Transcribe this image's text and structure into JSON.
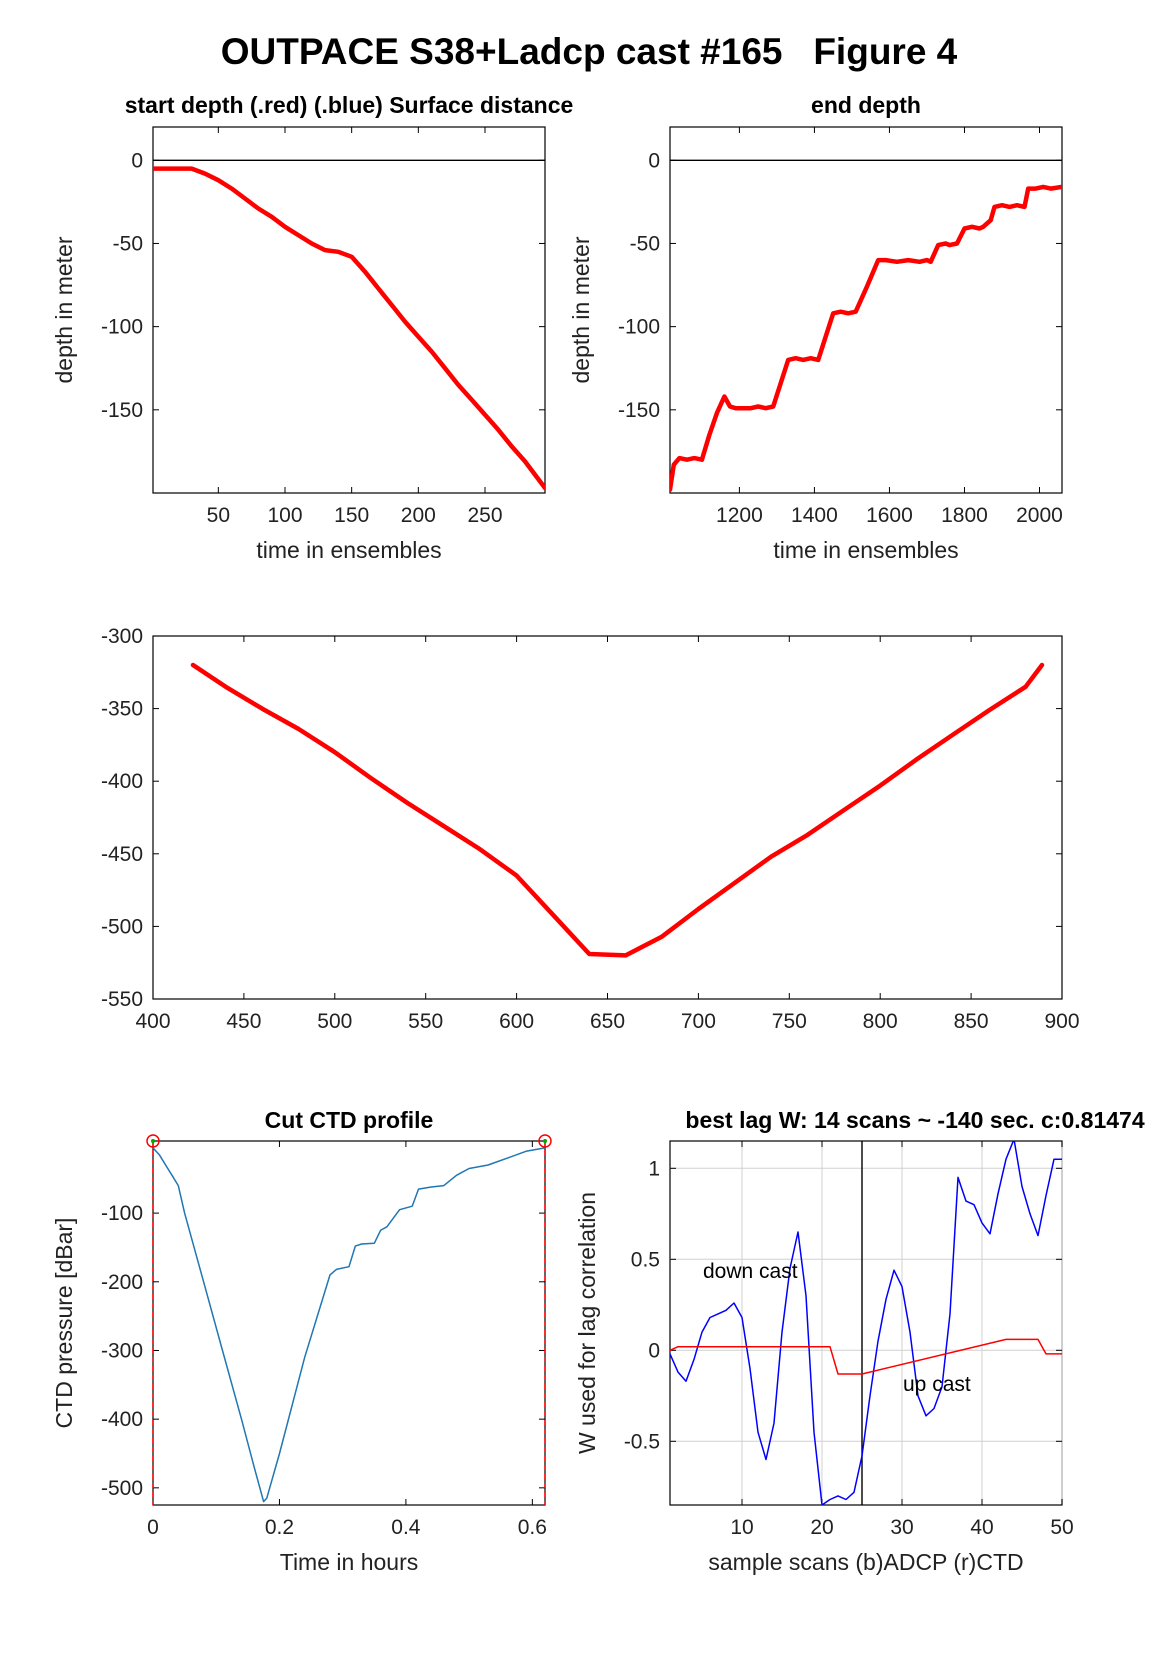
{
  "figure": {
    "title": "OUTPACE S38+Ladcp cast #165   Figure 4"
  },
  "chart_data": [
    {
      "id": "start_depth",
      "type": "line",
      "title": "start depth (.red) (.blue) Surface distance",
      "xlabel": "time in ensembles",
      "ylabel": "depth in meter",
      "xlim": [
        1,
        295
      ],
      "ylim": [
        -200,
        20
      ],
      "xticks": [
        50,
        100,
        150,
        200,
        250
      ],
      "yticks": [
        0,
        -50,
        -100,
        -150
      ],
      "reference_line": {
        "y": 0,
        "color": "#000000"
      },
      "series": [
        {
          "color": "#ff0000",
          "x": [
            1,
            10,
            20,
            30,
            40,
            50,
            60,
            70,
            80,
            90,
            100,
            110,
            120,
            130,
            140,
            150,
            160,
            170,
            180,
            190,
            200,
            210,
            220,
            230,
            240,
            250,
            260,
            270,
            280,
            295
          ],
          "y": [
            -5,
            -5,
            -5,
            -5,
            -8,
            -12,
            -17,
            -23,
            -29,
            -34,
            -40,
            -45,
            -50,
            -54,
            -55,
            -58,
            -67,
            -77,
            -87,
            -97,
            -106,
            -115,
            -125,
            -135,
            -144,
            -153,
            -162,
            -172,
            -181,
            -197
          ]
        }
      ]
    },
    {
      "id": "end_depth",
      "type": "line",
      "title": "end depth",
      "xlabel": "time in ensembles",
      "ylabel": "depth in meter",
      "xlim": [
        1015,
        2060
      ],
      "ylim": [
        -200,
        20
      ],
      "xticks": [
        1200,
        1400,
        1600,
        1800,
        2000
      ],
      "yticks": [
        0,
        -50,
        -100,
        -150
      ],
      "reference_line": {
        "y": 0,
        "color": "#000000"
      },
      "series": [
        {
          "color": "#ff0000",
          "x": [
            1015,
            1025,
            1040,
            1060,
            1080,
            1100,
            1120,
            1140,
            1160,
            1175,
            1190,
            1210,
            1230,
            1250,
            1270,
            1290,
            1310,
            1330,
            1350,
            1370,
            1390,
            1410,
            1430,
            1450,
            1470,
            1490,
            1510,
            1540,
            1570,
            1590,
            1620,
            1650,
            1680,
            1700,
            1710,
            1730,
            1750,
            1760,
            1780,
            1800,
            1820,
            1840,
            1850,
            1870,
            1880,
            1900,
            1920,
            1940,
            1960,
            1970,
            1990,
            2010,
            2030,
            2060
          ],
          "y": [
            -198,
            -183,
            -179,
            -180,
            -179,
            -180,
            -165,
            -152,
            -142,
            -148,
            -149,
            -149,
            -149,
            -148,
            -149,
            -148,
            -134,
            -120,
            -119,
            -120,
            -119,
            -120,
            -106,
            -92,
            -91,
            -92,
            -91,
            -76,
            -60,
            -60,
            -61,
            -60,
            -61,
            -60,
            -61,
            -51,
            -50,
            -51,
            -50,
            -41,
            -40,
            -41,
            -40,
            -36,
            -28,
            -27,
            -28,
            -27,
            -28,
            -17,
            -17,
            -16,
            -17,
            -16
          ]
        }
      ]
    },
    {
      "id": "surface_distance",
      "type": "line",
      "title": "",
      "xlabel": "",
      "ylabel": "",
      "xlim": [
        400,
        900
      ],
      "ylim": [
        -550,
        -300
      ],
      "xticks": [
        400,
        450,
        500,
        550,
        600,
        650,
        700,
        750,
        800,
        850,
        900
      ],
      "yticks": [
        -300,
        -350,
        -400,
        -450,
        -500,
        -550
      ],
      "series": [
        {
          "color": "#ff0000",
          "x": [
            422,
            440,
            460,
            480,
            500,
            520,
            540,
            560,
            580,
            600,
            620,
            640,
            660,
            680,
            700,
            720,
            740,
            760,
            780,
            800,
            820,
            840,
            860,
            880,
            889
          ],
          "y": [
            -320,
            -335,
            -350,
            -364,
            -380,
            -398,
            -415,
            -431,
            -447,
            -465,
            -492,
            -519,
            -520,
            -507,
            -488,
            -470,
            -452,
            -437,
            -420,
            -403,
            -385,
            -368,
            -351,
            -335,
            -320
          ]
        }
      ]
    },
    {
      "id": "cut_ctd_profile",
      "type": "line",
      "title": "Cut CTD profile",
      "xlabel": "Time in hours",
      "ylabel": "CTD pressure [dBar]",
      "xlim": [
        0,
        0.62
      ],
      "ylim": [
        -525,
        5
      ],
      "xticks": [
        0,
        0.2,
        0.4,
        0.6
      ],
      "yticks": [
        -100,
        -200,
        -300,
        -400,
        -500
      ],
      "cut_markers": {
        "x": [
          0,
          0.62
        ],
        "color": "#ff0000"
      },
      "series": [
        {
          "color": "#1f77b4",
          "x": [
            0,
            0.01,
            0.02,
            0.03,
            0.04,
            0.05,
            0.08,
            0.11,
            0.14,
            0.16,
            0.175,
            0.18,
            0.2,
            0.24,
            0.28,
            0.29,
            0.31,
            0.32,
            0.33,
            0.35,
            0.36,
            0.37,
            0.39,
            0.41,
            0.42,
            0.44,
            0.46,
            0.48,
            0.5,
            0.53,
            0.56,
            0.59,
            0.62
          ],
          "y": [
            -5,
            -15,
            -30,
            -45,
            -60,
            -100,
            -200,
            -300,
            -400,
            -470,
            -520,
            -515,
            -450,
            -310,
            -190,
            -182,
            -178,
            -148,
            -145,
            -144,
            -125,
            -120,
            -95,
            -90,
            -65,
            -62,
            -60,
            -45,
            -35,
            -30,
            -20,
            -10,
            -5
          ]
        }
      ]
    },
    {
      "id": "best_lag",
      "type": "line",
      "title": "best lag W: 14 scans ~ -140 sec.  c:0.81474",
      "xlabel": "sample scans (b)ADCP (r)CTD",
      "ylabel": "W used for lag correlation",
      "xlim": [
        1,
        50
      ],
      "ylim": [
        -0.85,
        1.15
      ],
      "xticks": [
        10,
        20,
        30,
        40,
        50
      ],
      "yticks": [
        1,
        0.5,
        0,
        -0.5
      ],
      "grid": true,
      "vertical_line": {
        "x": 25,
        "color": "#000000"
      },
      "annotations": [
        "down cast",
        "up cast"
      ],
      "series": [
        {
          "name": "(b)ADCP",
          "color": "#0000ff",
          "x": [
            1,
            2,
            3,
            4,
            5,
            6,
            7,
            8,
            9,
            10,
            11,
            12,
            13,
            14,
            15,
            16,
            17,
            18,
            19,
            20,
            21,
            22,
            23,
            24,
            25,
            26,
            27,
            28,
            29,
            30,
            31,
            32,
            33,
            34,
            35,
            36,
            37,
            38,
            39,
            40,
            41,
            42,
            43,
            44,
            45,
            46,
            47,
            48,
            49,
            50
          ],
          "y": [
            -0.02,
            -0.12,
            -0.17,
            -0.05,
            0.1,
            0.18,
            0.2,
            0.22,
            0.26,
            0.18,
            -0.1,
            -0.45,
            -0.6,
            -0.4,
            0.1,
            0.45,
            0.65,
            0.3,
            -0.45,
            -0.85,
            -0.82,
            -0.8,
            -0.82,
            -0.78,
            -0.58,
            -0.25,
            0.05,
            0.28,
            0.44,
            0.35,
            0.1,
            -0.25,
            -0.36,
            -0.32,
            -0.2,
            0.2,
            0.95,
            0.82,
            0.8,
            0.7,
            0.64,
            0.86,
            1.05,
            1.16,
            0.9,
            0.75,
            0.63,
            0.85,
            1.05,
            1.05
          ]
        },
        {
          "name": "(r)CTD",
          "color": "#ff0000",
          "x": [
            1,
            2,
            3,
            4,
            5,
            6,
            7,
            8,
            9,
            10,
            11,
            12,
            13,
            14,
            15,
            16,
            17,
            18,
            19,
            20,
            21,
            22,
            23,
            24,
            25,
            43,
            44,
            45,
            46,
            47,
            48,
            49,
            50
          ],
          "y": [
            0,
            0.02,
            0.02,
            0.02,
            0.02,
            0.02,
            0.02,
            0.02,
            0.02,
            0.02,
            0.02,
            0.02,
            0.02,
            0.02,
            0.02,
            0.02,
            0.02,
            0.02,
            0.02,
            0.02,
            0.02,
            -0.13,
            -0.13,
            -0.13,
            -0.13,
            0.06,
            0.06,
            0.06,
            0.06,
            0.06,
            -0.02,
            -0.02,
            -0.02
          ]
        }
      ]
    }
  ]
}
